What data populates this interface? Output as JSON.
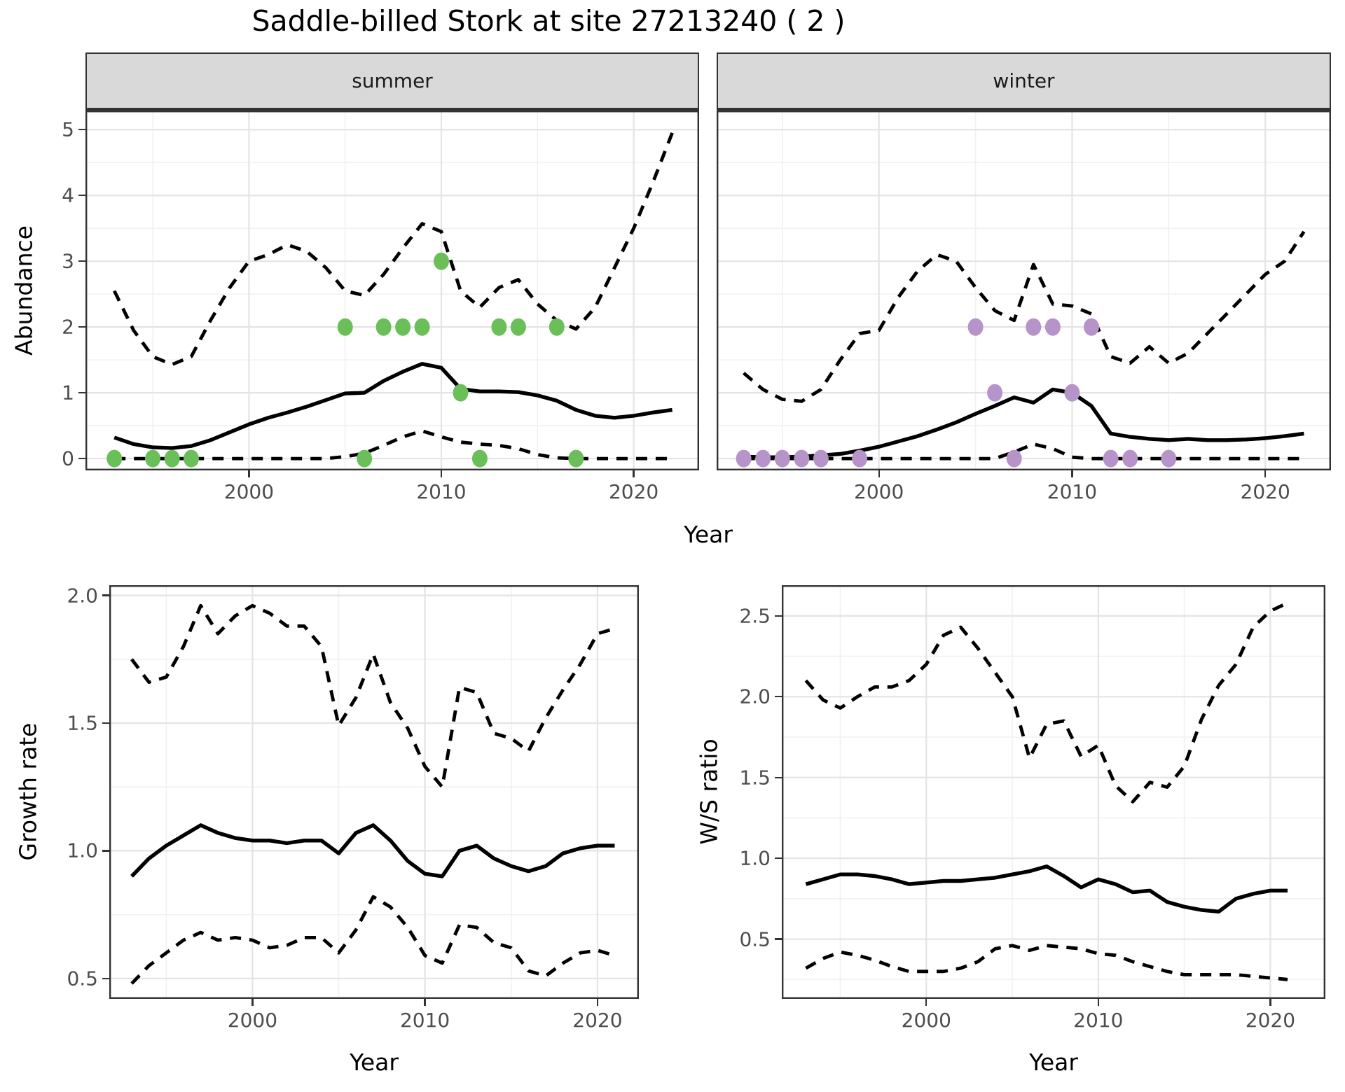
{
  "title": "Saddle-billed Stork at site 27213240 ( 2 )",
  "top_row": {
    "ylabel": "Abundance",
    "xlabel": "Year",
    "facets": [
      "summer",
      "winter"
    ]
  },
  "colors": {
    "summer_point": "#6abf59",
    "winter_point": "#b693c8",
    "line": "#000000",
    "strip_bg": "#d9d9d9",
    "panel_border": "#333333",
    "grid_major": "#e4e4e4",
    "grid_minor": "#f1f1f1",
    "tick_label": "#4d4d4d"
  },
  "chart_data": [
    {
      "id": "abundance-summer",
      "type": "line",
      "facet": "summer",
      "ylabel": "Abundance",
      "xlabel": "Year",
      "x": [
        1993,
        1994,
        1995,
        1996,
        1997,
        1998,
        1999,
        2000,
        2001,
        2002,
        2003,
        2004,
        2005,
        2006,
        2007,
        2008,
        2009,
        2010,
        2011,
        2012,
        2013,
        2014,
        2015,
        2016,
        2017,
        2018,
        2019,
        2020,
        2021,
        2022
      ],
      "series": [
        {
          "name": "mean",
          "style": "solid",
          "values": [
            0.32,
            0.22,
            0.17,
            0.16,
            0.19,
            0.28,
            0.4,
            0.52,
            0.62,
            0.7,
            0.79,
            0.89,
            0.99,
            1.0,
            1.18,
            1.32,
            1.44,
            1.38,
            1.06,
            1.02,
            1.02,
            1.01,
            0.96,
            0.88,
            0.74,
            0.65,
            0.62,
            0.65,
            0.7,
            0.74
          ]
        },
        {
          "name": "upper_ci",
          "style": "dashed",
          "values": [
            2.55,
            1.95,
            1.55,
            1.43,
            1.55,
            2.1,
            2.6,
            3.0,
            3.1,
            3.25,
            3.15,
            2.9,
            2.55,
            2.48,
            2.8,
            3.2,
            3.57,
            3.45,
            2.55,
            2.3,
            2.6,
            2.72,
            2.35,
            2.1,
            1.97,
            2.3,
            2.9,
            3.5,
            4.2,
            4.95
          ]
        },
        {
          "name": "lower_ci",
          "style": "dashed",
          "values": [
            0,
            0,
            0,
            0,
            0,
            0,
            0,
            0,
            0,
            0,
            0,
            0,
            0.03,
            0.08,
            0.2,
            0.33,
            0.42,
            0.33,
            0.25,
            0.22,
            0.2,
            0.15,
            0.06,
            0.01,
            0,
            0,
            0,
            0,
            0,
            0
          ]
        }
      ],
      "observations": [
        [
          1993,
          0
        ],
        [
          1995,
          0
        ],
        [
          1996,
          0
        ],
        [
          1997,
          0
        ],
        [
          2005,
          2
        ],
        [
          2006,
          0
        ],
        [
          2007,
          2
        ],
        [
          2008,
          2
        ],
        [
          2009,
          2
        ],
        [
          2010,
          3
        ],
        [
          2011,
          1
        ],
        [
          2012,
          0
        ],
        [
          2013,
          2
        ],
        [
          2014,
          2
        ],
        [
          2016,
          2
        ],
        [
          2017,
          0
        ]
      ],
      "point_color": "#6abf59",
      "xlim": [
        1991.5,
        2023.4
      ],
      "ylim": [
        -0.18,
        5.29
      ],
      "xticks": {
        "values": [
          2000,
          2010,
          2020
        ],
        "labels": [
          "2000",
          "2010",
          "2020"
        ]
      },
      "yticks": {
        "values": [
          0,
          1,
          2,
          3,
          4,
          5
        ],
        "labels": [
          "0",
          "1",
          "2",
          "3",
          "4",
          "5"
        ]
      },
      "xminor": [
        1995,
        2005,
        2015
      ],
      "yminor": [
        0.5,
        1.5,
        2.5,
        3.5,
        4.5
      ],
      "show_yticks": true,
      "show_xticks": true
    },
    {
      "id": "abundance-winter",
      "type": "line",
      "facet": "winter",
      "ylabel": "Abundance",
      "xlabel": "Year",
      "x": [
        1993,
        1994,
        1995,
        1996,
        1997,
        1998,
        1999,
        2000,
        2001,
        2002,
        2003,
        2004,
        2005,
        2006,
        2007,
        2008,
        2009,
        2010,
        2011,
        2012,
        2013,
        2014,
        2015,
        2016,
        2017,
        2018,
        2019,
        2020,
        2021,
        2022
      ],
      "series": [
        {
          "name": "mean",
          "style": "solid",
          "values": [
            0.03,
            0.02,
            0.02,
            0.03,
            0.05,
            0.07,
            0.12,
            0.18,
            0.26,
            0.34,
            0.44,
            0.55,
            0.68,
            0.8,
            0.93,
            0.85,
            1.05,
            1.0,
            0.8,
            0.38,
            0.33,
            0.3,
            0.28,
            0.3,
            0.28,
            0.28,
            0.29,
            0.31,
            0.34,
            0.38
          ]
        },
        {
          "name": "upper_ci",
          "style": "dashed",
          "values": [
            1.3,
            1.05,
            0.9,
            0.87,
            1.05,
            1.5,
            1.9,
            1.95,
            2.45,
            2.85,
            3.1,
            3.0,
            2.6,
            2.25,
            2.1,
            2.95,
            2.35,
            2.32,
            2.2,
            1.55,
            1.45,
            1.7,
            1.45,
            1.6,
            1.9,
            2.2,
            2.5,
            2.8,
            3.0,
            3.45
          ]
        },
        {
          "name": "lower_ci",
          "style": "dashed",
          "values": [
            0,
            0,
            0,
            0,
            0,
            0,
            0,
            0,
            0,
            0,
            0,
            0,
            0,
            0,
            0.1,
            0.22,
            0.15,
            0.02,
            0,
            0,
            0,
            0,
            0,
            0,
            0,
            0,
            0,
            0,
            0,
            0
          ]
        }
      ],
      "observations": [
        [
          1993,
          0
        ],
        [
          1994,
          0
        ],
        [
          1995,
          0
        ],
        [
          1996,
          0
        ],
        [
          1997,
          0
        ],
        [
          1999,
          0
        ],
        [
          2005,
          2
        ],
        [
          2006,
          1
        ],
        [
          2007,
          0
        ],
        [
          2008,
          2
        ],
        [
          2009,
          2
        ],
        [
          2010,
          1
        ],
        [
          2011,
          2
        ],
        [
          2012,
          0
        ],
        [
          2013,
          0
        ],
        [
          2015,
          0
        ]
      ],
      "point_color": "#b693c8",
      "xlim": [
        1991.6,
        2023.4
      ],
      "ylim": [
        -0.18,
        5.29
      ],
      "xticks": {
        "values": [
          2000,
          2010,
          2020
        ],
        "labels": [
          "2000",
          "2010",
          "2020"
        ]
      },
      "yticks": {
        "values": [
          0,
          1,
          2,
          3,
          4,
          5
        ],
        "labels": [
          "0",
          "1",
          "2",
          "3",
          "4",
          "5"
        ]
      },
      "xminor": [
        1995,
        2005,
        2015
      ],
      "yminor": [
        0.5,
        1.5,
        2.5,
        3.5,
        4.5
      ],
      "show_yticks": false,
      "show_xticks": true
    },
    {
      "id": "growth-rate",
      "type": "line",
      "ylabel": "Growth rate",
      "xlabel": "Year",
      "x": [
        1993,
        1994,
        1995,
        1996,
        1997,
        1998,
        1999,
        2000,
        2001,
        2002,
        2003,
        2004,
        2005,
        2006,
        2007,
        2008,
        2009,
        2010,
        2011,
        2012,
        2013,
        2014,
        2015,
        2016,
        2017,
        2018,
        2019,
        2020,
        2021
      ],
      "series": [
        {
          "name": "mean",
          "style": "solid",
          "values": [
            0.9,
            0.97,
            1.02,
            1.06,
            1.1,
            1.07,
            1.05,
            1.04,
            1.04,
            1.03,
            1.04,
            1.04,
            0.99,
            1.07,
            1.1,
            1.04,
            0.96,
            0.91,
            0.9,
            1.0,
            1.02,
            0.97,
            0.94,
            0.92,
            0.94,
            0.99,
            1.01,
            1.02,
            1.02
          ]
        },
        {
          "name": "upper_ci",
          "style": "dashed",
          "values": [
            1.75,
            1.66,
            1.68,
            1.8,
            1.96,
            1.85,
            1.92,
            1.96,
            1.93,
            1.88,
            1.88,
            1.8,
            1.49,
            1.6,
            1.77,
            1.58,
            1.48,
            1.33,
            1.25,
            1.64,
            1.62,
            1.46,
            1.44,
            1.39,
            1.52,
            1.63,
            1.73,
            1.85,
            1.87
          ]
        },
        {
          "name": "lower_ci",
          "style": "dashed",
          "values": [
            0.48,
            0.55,
            0.6,
            0.65,
            0.68,
            0.65,
            0.66,
            0.65,
            0.62,
            0.63,
            0.66,
            0.66,
            0.6,
            0.69,
            0.82,
            0.78,
            0.7,
            0.59,
            0.56,
            0.71,
            0.7,
            0.64,
            0.62,
            0.53,
            0.51,
            0.56,
            0.6,
            0.61,
            0.59
          ]
        }
      ],
      "observations": [],
      "point_color": "#000000",
      "xlim": [
        1991.7,
        2022.4
      ],
      "ylim": [
        0.42,
        2.04
      ],
      "xticks": {
        "values": [
          2000,
          2010,
          2020
        ],
        "labels": [
          "2000",
          "2010",
          "2020"
        ]
      },
      "yticks": {
        "values": [
          0.5,
          1.0,
          1.5,
          2.0
        ],
        "labels": [
          "0.5",
          "1.0",
          "1.5",
          "2.0"
        ]
      },
      "xminor": [
        1995,
        2005,
        2015
      ],
      "yminor": [
        0.75,
        1.25,
        1.75
      ],
      "show_yticks": true,
      "show_xticks": true
    },
    {
      "id": "ws-ratio",
      "type": "line",
      "ylabel": "W/S ratio",
      "xlabel": "Year",
      "x": [
        1993,
        1994,
        1995,
        1996,
        1997,
        1998,
        1999,
        2000,
        2001,
        2002,
        2003,
        2004,
        2005,
        2006,
        2007,
        2008,
        2009,
        2010,
        2011,
        2012,
        2013,
        2014,
        2015,
        2016,
        2017,
        2018,
        2019,
        2020,
        2021
      ],
      "series": [
        {
          "name": "mean",
          "style": "solid",
          "values": [
            0.84,
            0.87,
            0.9,
            0.9,
            0.89,
            0.87,
            0.84,
            0.85,
            0.86,
            0.86,
            0.87,
            0.88,
            0.9,
            0.92,
            0.95,
            0.89,
            0.82,
            0.87,
            0.84,
            0.79,
            0.8,
            0.73,
            0.7,
            0.68,
            0.67,
            0.75,
            0.78,
            0.8,
            0.8
          ]
        },
        {
          "name": "upper_ci",
          "style": "dashed",
          "values": [
            2.1,
            1.98,
            1.93,
            2.0,
            2.06,
            2.06,
            2.1,
            2.2,
            2.38,
            2.43,
            2.3,
            2.15,
            2.0,
            1.62,
            1.83,
            1.85,
            1.63,
            1.7,
            1.45,
            1.35,
            1.47,
            1.44,
            1.57,
            1.86,
            2.07,
            2.2,
            2.43,
            2.53,
            2.58
          ]
        },
        {
          "name": "lower_ci",
          "style": "dashed",
          "values": [
            0.32,
            0.38,
            0.42,
            0.4,
            0.37,
            0.33,
            0.3,
            0.3,
            0.3,
            0.32,
            0.36,
            0.44,
            0.46,
            0.43,
            0.46,
            0.45,
            0.44,
            0.41,
            0.4,
            0.36,
            0.33,
            0.3,
            0.28,
            0.28,
            0.28,
            0.28,
            0.27,
            0.26,
            0.25
          ]
        }
      ],
      "observations": [],
      "point_color": "#000000",
      "xlim": [
        1991.6,
        2023.2
      ],
      "ylim": [
        0.13,
        2.69
      ],
      "xticks": {
        "values": [
          2000,
          2010,
          2020
        ],
        "labels": [
          "2000",
          "2010",
          "2020"
        ]
      },
      "yticks": {
        "values": [
          0.5,
          1.0,
          1.5,
          2.0,
          2.5
        ],
        "labels": [
          "0.5",
          "1.0",
          "1.5",
          "2.0",
          "2.5"
        ]
      },
      "xminor": [
        1995,
        2005,
        2015
      ],
      "yminor": [
        0.25,
        0.75,
        1.25,
        1.75,
        2.25
      ],
      "show_yticks": true,
      "show_xticks": true
    }
  ]
}
